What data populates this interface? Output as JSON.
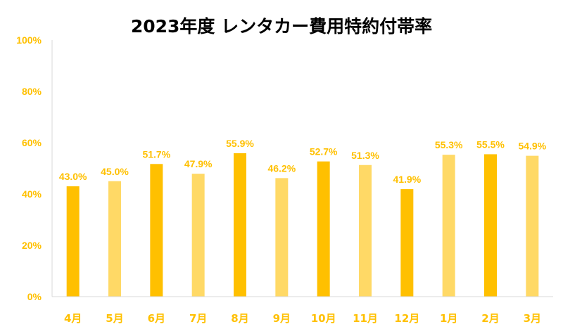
{
  "colors": {
    "accent": "#FFC000",
    "accent_light": "#FFD966",
    "axis_line": "#D9D9D9"
  },
  "chart_data": {
    "type": "bar",
    "title": "2023年度 レンタカー費用特約付帯率",
    "xlabel": "",
    "ylabel": "",
    "categories": [
      "4月",
      "5月",
      "6月",
      "7月",
      "8月",
      "9月",
      "10月",
      "11月",
      "12月",
      "1月",
      "2月",
      "3月"
    ],
    "values": [
      43.0,
      45.0,
      51.7,
      47.9,
      55.9,
      46.2,
      52.7,
      51.3,
      41.9,
      55.3,
      55.5,
      54.9
    ],
    "data_labels": [
      "43.0%",
      "45.0%",
      "51.7%",
      "47.9%",
      "55.9%",
      "46.2%",
      "52.7%",
      "51.3%",
      "41.9%",
      "55.3%",
      "55.5%",
      "54.9%"
    ],
    "ylim": [
      0,
      100
    ],
    "yticks": [
      0,
      20,
      40,
      60,
      80,
      100
    ],
    "ytick_labels": [
      "0%",
      "20%",
      "40%",
      "60%",
      "80%",
      "100%"
    ],
    "bar_color_pattern": [
      "accent",
      "accent_light",
      "accent",
      "accent_light",
      "accent",
      "accent_light",
      "accent",
      "accent_light",
      "accent",
      "accent_light",
      "accent",
      "accent_light"
    ],
    "grid": false,
    "legend": "none"
  }
}
